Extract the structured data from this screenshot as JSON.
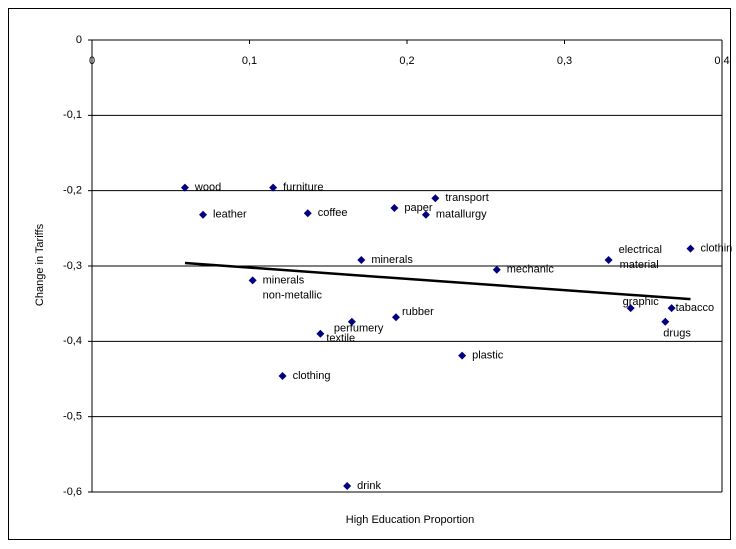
{
  "chart_data": {
    "type": "scatter",
    "x_label": "High Education Proportion",
    "y_label": "Change in Tariffs",
    "xlim": [
      0,
      0.4
    ],
    "ylim": [
      -0.6,
      0
    ],
    "xticks": [
      0,
      {
        "value": 0.1,
        "label": "0,1"
      },
      {
        "value": 0.2,
        "label": "0,2"
      },
      {
        "value": 0.3,
        "label": "0,3"
      },
      {
        "value": 0.4,
        "label": "0,4"
      }
    ],
    "yticks": [
      0,
      {
        "value": -0.1,
        "label": "-0,1"
      },
      {
        "value": -0.2,
        "label": "-0,2"
      },
      {
        "value": -0.3,
        "label": "-0,3"
      },
      {
        "value": -0.4,
        "label": "-0,4"
      },
      {
        "value": -0.5,
        "label": "-0,5"
      },
      {
        "value": -0.6,
        "label": "-0,6"
      }
    ],
    "grid": true,
    "color": "#000080",
    "labels": [
      "wood",
      "furniture",
      "leather",
      "coffee",
      "paper",
      "transport",
      "matallurgy",
      "minerals",
      "mechanic",
      "electrical material",
      "clothin",
      "minerals non-metallic",
      "graphic",
      "tabacco",
      "drugs",
      "rubber",
      "perfumery",
      "textile",
      "plastic",
      "clothing",
      "drink"
    ],
    "x": [
      0.059,
      0.115,
      0.0705,
      0.137,
      0.192,
      0.218,
      0.212,
      0.171,
      0.257,
      0.328,
      0.38,
      0.102,
      0.342,
      0.368,
      0.364,
      0.193,
      0.165,
      0.145,
      0.235,
      0.121,
      0.162
    ],
    "y": [
      -0.196,
      -0.196,
      -0.232,
      -0.23,
      -0.223,
      -0.21,
      -0.232,
      -0.292,
      -0.305,
      -0.292,
      -0.277,
      -0.319,
      -0.356,
      -0.356,
      -0.374,
      -0.368,
      -0.374,
      -0.39,
      -0.419,
      -0.446,
      -0.592
    ],
    "trendline": {
      "x": [
        0.059,
        0.38
      ],
      "y": [
        -0.296,
        -0.344
      ],
      "color": "#000000"
    }
  }
}
